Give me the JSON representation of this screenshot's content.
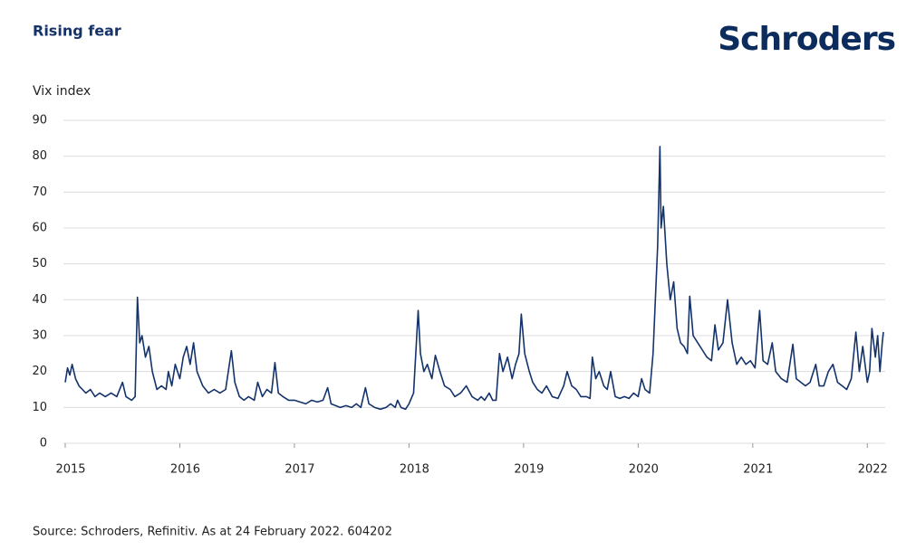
{
  "chart_data": {
    "type": "line",
    "title": "Rising fear",
    "brand": "Schroders",
    "ylabel": "Vix index",
    "source": "Source: Schroders, Refinitiv. As at 24 February 2022. 604202",
    "color": "#14336b",
    "grid": true,
    "xlim": [
      2015,
      2022.14
    ],
    "xticks": [
      2015,
      2016,
      2017,
      2018,
      2019,
      2020,
      2021,
      2022
    ],
    "ylim": [
      0,
      90
    ],
    "yticks": [
      0,
      10,
      20,
      30,
      40,
      50,
      60,
      70,
      80,
      90
    ],
    "x": [
      2015.0,
      2015.02,
      2015.04,
      2015.06,
      2015.09,
      2015.12,
      2015.15,
      2015.18,
      2015.22,
      2015.26,
      2015.3,
      2015.35,
      2015.4,
      2015.45,
      2015.5,
      2015.53,
      2015.58,
      2015.61,
      2015.63,
      2015.65,
      2015.67,
      2015.7,
      2015.73,
      2015.76,
      2015.8,
      2015.84,
      2015.88,
      2015.9,
      2015.93,
      2015.96,
      2016.0,
      2016.03,
      2016.06,
      2016.09,
      2016.12,
      2016.15,
      2016.2,
      2016.25,
      2016.3,
      2016.35,
      2016.4,
      2016.45,
      2016.48,
      2016.52,
      2016.56,
      2016.6,
      2016.65,
      2016.68,
      2016.72,
      2016.76,
      2016.8,
      2016.83,
      2016.86,
      2016.9,
      2016.95,
      2017.0,
      2017.05,
      2017.1,
      2017.15,
      2017.2,
      2017.25,
      2017.29,
      2017.32,
      2017.36,
      2017.4,
      2017.45,
      2017.5,
      2017.54,
      2017.58,
      2017.62,
      2017.65,
      2017.7,
      2017.75,
      2017.8,
      2017.84,
      2017.88,
      2017.9,
      2017.93,
      2017.97,
      2018.0,
      2018.04,
      2018.08,
      2018.1,
      2018.13,
      2018.16,
      2018.2,
      2018.23,
      2018.27,
      2018.31,
      2018.36,
      2018.4,
      2018.45,
      2018.5,
      2018.55,
      2018.6,
      2018.63,
      2018.66,
      2018.7,
      2018.73,
      2018.76,
      2018.79,
      2018.82,
      2018.86,
      2018.9,
      2018.93,
      2018.96,
      2018.98,
      2019.01,
      2019.05,
      2019.08,
      2019.12,
      2019.16,
      2019.2,
      2019.25,
      2019.3,
      2019.35,
      2019.38,
      2019.42,
      2019.46,
      2019.5,
      2019.55,
      2019.58,
      2019.6,
      2019.63,
      2019.66,
      2019.7,
      2019.73,
      2019.76,
      2019.8,
      2019.84,
      2019.88,
      2019.92,
      2019.96,
      2020.0,
      2020.03,
      2020.06,
      2020.1,
      2020.13,
      2020.15,
      2020.17,
      2020.19,
      2020.2,
      2020.22,
      2020.25,
      2020.28,
      2020.31,
      2020.34,
      2020.37,
      2020.4,
      2020.43,
      2020.45,
      2020.48,
      2020.52,
      2020.56,
      2020.6,
      2020.64,
      2020.67,
      2020.7,
      2020.74,
      2020.78,
      2020.82,
      2020.86,
      2020.9,
      2020.94,
      2020.98,
      2021.02,
      2021.06,
      2021.09,
      2021.13,
      2021.17,
      2021.2,
      2021.25,
      2021.3,
      2021.35,
      2021.38,
      2021.42,
      2021.46,
      2021.5,
      2021.55,
      2021.58,
      2021.62,
      2021.66,
      2021.7,
      2021.74,
      2021.78,
      2021.82,
      2021.86,
      2021.9,
      2021.93,
      2021.96,
      2022.0,
      2022.02,
      2022.04,
      2022.07,
      2022.09,
      2022.11,
      2022.13,
      2022.14
    ],
    "values": [
      17,
      21,
      19,
      22,
      18,
      16,
      15,
      14,
      15,
      13,
      14,
      13,
      14,
      13,
      17,
      13,
      12,
      13,
      40.7,
      28,
      30,
      24,
      27,
      20,
      15,
      16,
      15,
      20,
      16,
      22,
      18,
      24,
      27,
      22,
      28,
      20,
      16,
      14,
      15,
      14,
      15,
      25.8,
      17,
      13,
      12,
      13,
      12,
      17,
      13,
      15,
      14,
      22.5,
      14,
      13,
      12,
      12,
      11.5,
      11,
      12,
      11.5,
      12,
      15.5,
      11,
      10.5,
      10,
      10.5,
      10,
      11,
      10,
      15.5,
      11,
      10,
      9.5,
      10,
      11,
      10,
      12,
      10,
      9.5,
      11,
      14,
      37,
      25,
      20,
      22,
      18,
      24.5,
      20,
      16,
      15,
      13,
      14,
      16,
      13,
      12,
      13,
      12,
      14,
      12,
      12,
      25,
      20,
      24,
      18,
      22,
      25,
      36,
      25,
      20,
      17,
      15,
      14,
      16,
      13,
      12.5,
      16,
      20,
      16,
      15,
      13,
      13,
      12.5,
      24,
      18,
      20,
      16,
      15,
      20,
      13,
      12.5,
      13,
      12.5,
      14,
      13,
      18,
      15,
      14,
      25,
      40,
      55,
      82.7,
      60,
      66,
      50,
      40,
      45,
      32,
      28,
      27,
      25,
      41,
      30,
      28,
      26,
      24,
      23,
      33,
      26,
      28,
      40,
      28,
      22,
      24,
      22,
      23,
      21,
      37,
      23,
      22,
      28,
      20,
      18,
      17,
      27.6,
      18,
      17,
      16,
      17,
      22,
      16,
      16,
      20,
      22,
      17,
      16,
      15,
      18,
      31,
      20,
      27,
      17,
      20,
      32,
      24,
      30,
      20,
      28,
      31
    ]
  }
}
